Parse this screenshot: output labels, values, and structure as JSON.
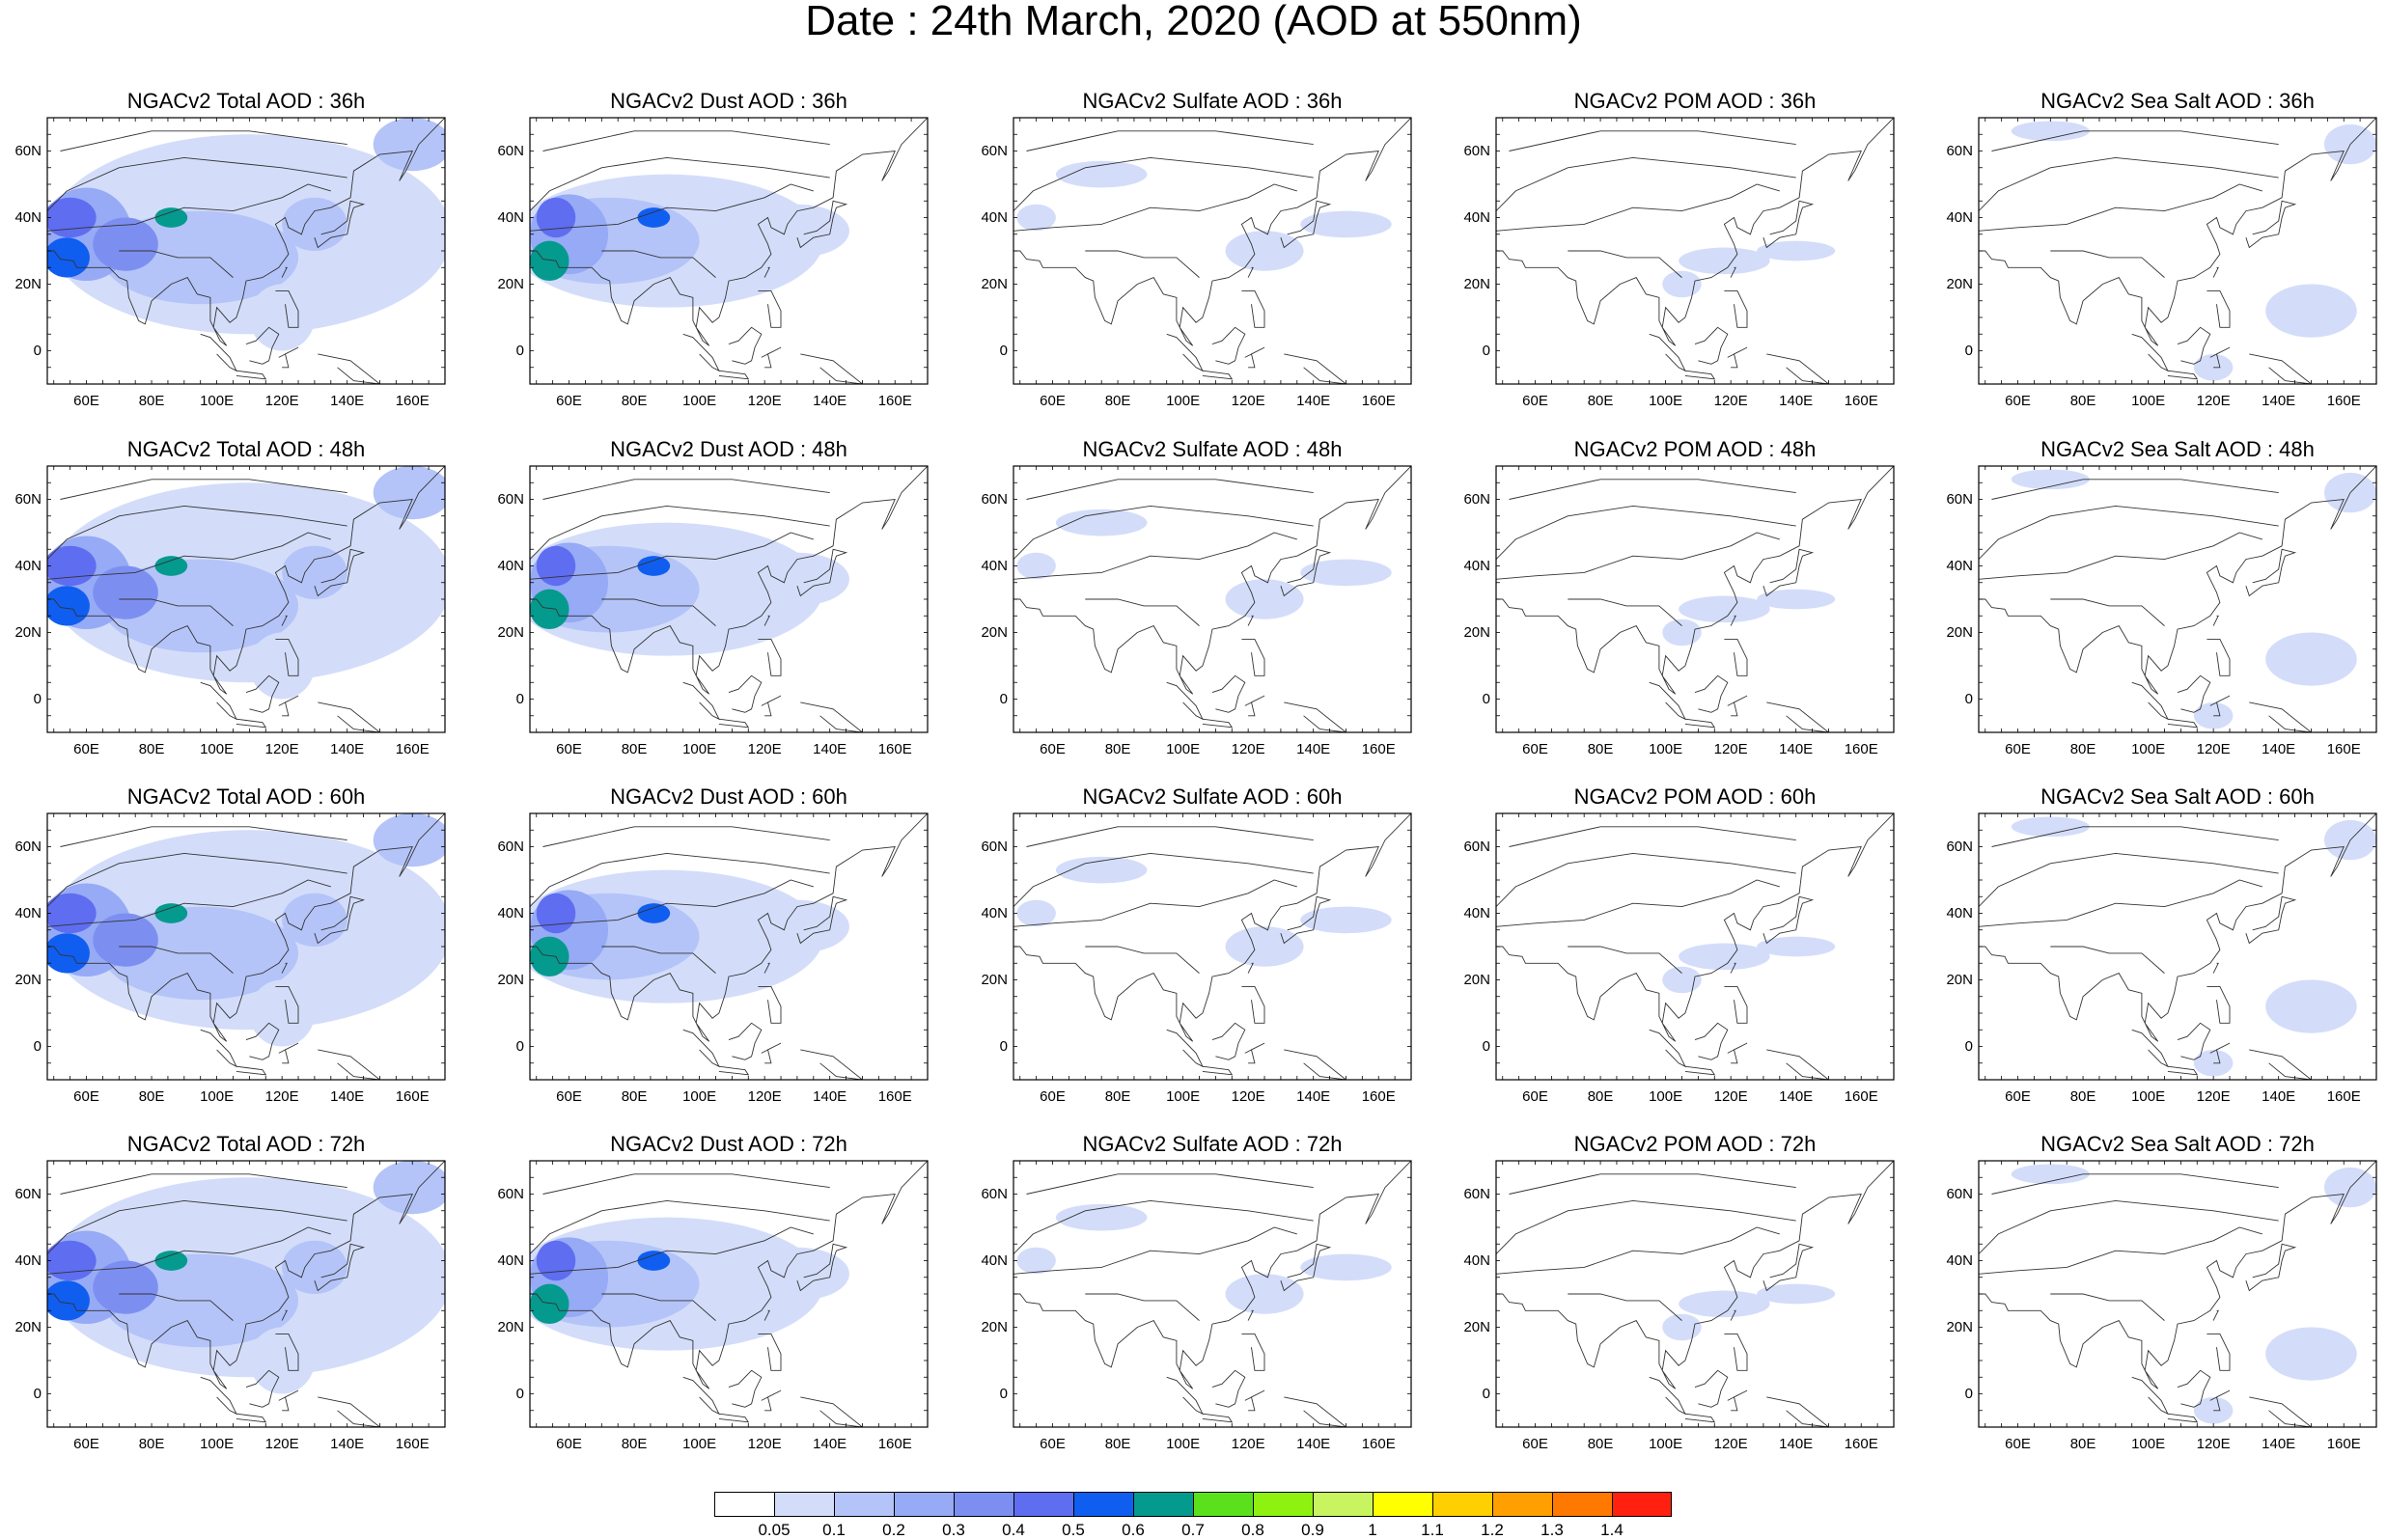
{
  "figure": {
    "title": "Date : 24th March, 2020 (AOD at 550nm)"
  },
  "colorbar": {
    "labels": [
      "0.05",
      "0.1",
      "0.2",
      "0.3",
      "0.4",
      "0.5",
      "0.6",
      "0.7",
      "0.8",
      "0.9",
      "1",
      "1.1",
      "1.2",
      "1.3",
      "1.4"
    ],
    "colors": [
      "#ffffff",
      "#d3ddfa",
      "#b4c4f8",
      "#96aaf6",
      "#7c8ff1",
      "#5f6df0",
      "#0f5ef0",
      "#059a8e",
      "#5be11b",
      "#8ef10f",
      "#c8f55f",
      "#ffff00",
      "#ffd000",
      "#ffa000",
      "#ff7800",
      "#ff2010"
    ]
  },
  "axes": {
    "lon_labels": [
      "60E",
      "80E",
      "100E",
      "120E",
      "140E",
      "160E"
    ],
    "lat_labels": [
      "60N",
      "40N",
      "20N",
      "0"
    ],
    "lon_values": [
      60,
      80,
      100,
      120,
      140,
      160
    ],
    "lat_values": [
      60,
      40,
      20,
      0
    ],
    "lon_range": [
      48,
      170
    ],
    "lat_range": [
      -10,
      70
    ]
  },
  "panels": [
    {
      "title": "NGACv2 Total AOD : 36h",
      "species": "total",
      "hour": "36h"
    },
    {
      "title": "NGACv2 Dust AOD : 36h",
      "species": "dust",
      "hour": "36h"
    },
    {
      "title": "NGACv2 Sulfate AOD : 36h",
      "species": "sulfate",
      "hour": "36h"
    },
    {
      "title": "NGACv2 POM AOD : 36h",
      "species": "pom",
      "hour": "36h"
    },
    {
      "title": "NGACv2 Sea Salt AOD : 36h",
      "species": "seasalt",
      "hour": "36h"
    },
    {
      "title": "NGACv2 Total AOD : 48h",
      "species": "total",
      "hour": "48h"
    },
    {
      "title": "NGACv2 Dust AOD : 48h",
      "species": "dust",
      "hour": "48h"
    },
    {
      "title": "NGACv2 Sulfate AOD : 48h",
      "species": "sulfate",
      "hour": "48h"
    },
    {
      "title": "NGACv2 POM AOD : 48h",
      "species": "pom",
      "hour": "48h"
    },
    {
      "title": "NGACv2 Sea Salt AOD : 48h",
      "species": "seasalt",
      "hour": "48h"
    },
    {
      "title": "NGACv2 Total AOD : 60h",
      "species": "total",
      "hour": "60h"
    },
    {
      "title": "NGACv2 Dust AOD : 60h",
      "species": "dust",
      "hour": "60h"
    },
    {
      "title": "NGACv2 Sulfate AOD : 60h",
      "species": "sulfate",
      "hour": "60h"
    },
    {
      "title": "NGACv2 POM AOD : 60h",
      "species": "pom",
      "hour": "60h"
    },
    {
      "title": "NGACv2 Sea Salt AOD : 60h",
      "species": "seasalt",
      "hour": "60h"
    },
    {
      "title": "NGACv2 Total AOD : 72h",
      "species": "total",
      "hour": "72h"
    },
    {
      "title": "NGACv2 Dust AOD : 72h",
      "species": "dust",
      "hour": "72h"
    },
    {
      "title": "NGACv2 Sulfate AOD : 72h",
      "species": "sulfate",
      "hour": "72h"
    },
    {
      "title": "NGACv2 POM AOD : 72h",
      "species": "pom",
      "hour": "72h"
    },
    {
      "title": "NGACv2 Sea Salt  AOD : 72h",
      "species": "seasalt",
      "hour": "72h"
    }
  ]
}
